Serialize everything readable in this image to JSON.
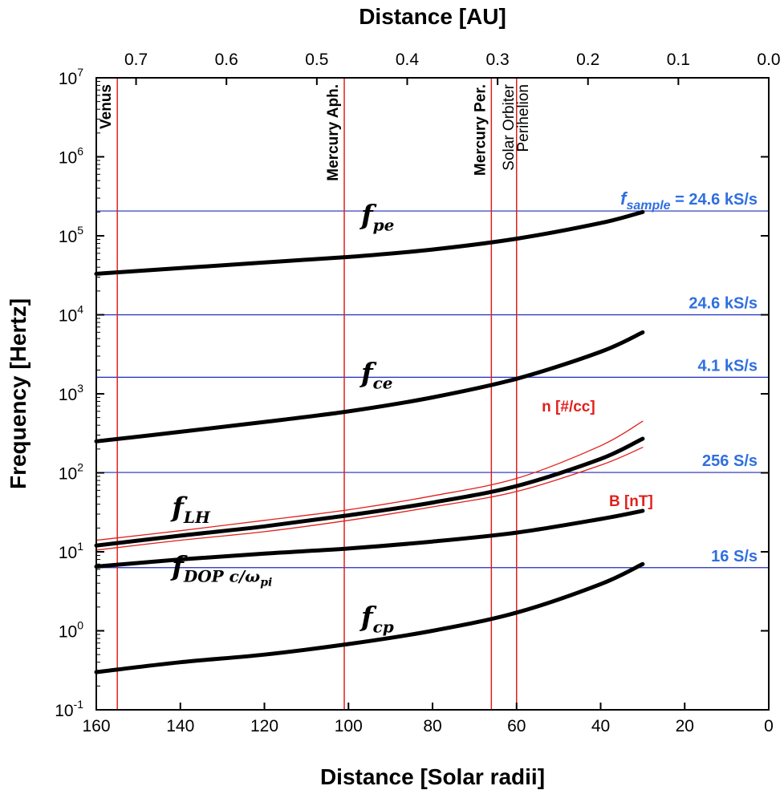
{
  "chart_data": {
    "type": "line",
    "xlabel": "Distance [Solar radii]",
    "x2label": "Distance [AU]",
    "ylabel": "Frequency [Hertz]",
    "xlim": [
      160,
      0
    ],
    "x2lim": [
      0.744,
      0.0
    ],
    "ylim": [
      0.1,
      10000000
    ],
    "yscale": "log",
    "x_ticks": [
      "160",
      "140",
      "120",
      "100",
      "80",
      "60",
      "40",
      "20",
      "0"
    ],
    "x_tick_values": [
      160,
      140,
      120,
      100,
      80,
      60,
      40,
      20,
      0
    ],
    "x2_ticks": [
      "0.7",
      "0.6",
      "0.5",
      "0.4",
      "0.3",
      "0.2",
      "0.1",
      "0.0"
    ],
    "x2_tick_values": [
      0.7,
      0.6,
      0.5,
      0.4,
      0.3,
      0.2,
      0.1,
      0.0
    ],
    "y_tick_exponents": [
      "-1",
      "0",
      "1",
      "2",
      "3",
      "4",
      "5",
      "6",
      "7"
    ],
    "y_tick_values": [
      0.1,
      1,
      10,
      100,
      1000,
      10000,
      100000,
      1000000,
      10000000
    ],
    "y_tick_base": "10",
    "series": [
      {
        "label": "f_pe",
        "color": "#000000",
        "x": [
          160,
          140,
          120,
          100,
          80,
          60,
          40,
          30
        ],
        "y": [
          33000,
          39000,
          46000,
          54000,
          67000,
          92000,
          145000,
          200000
        ]
      },
      {
        "label": "f_ce",
        "color": "#000000",
        "x": [
          160,
          140,
          120,
          100,
          80,
          60,
          40,
          30
        ],
        "y": [
          250,
          330,
          440,
          600,
          900,
          1550,
          3400,
          6000
        ]
      },
      {
        "label": "f_LH",
        "color": "#000000",
        "x": [
          160,
          140,
          120,
          100,
          80,
          60,
          40,
          30
        ],
        "y": [
          12,
          16,
          21,
          29,
          42,
          68,
          150,
          270
        ]
      },
      {
        "label": "n [#/cc]",
        "color": "#e0201b",
        "x": [
          160,
          140,
          120,
          100,
          80,
          60,
          40,
          30
        ],
        "y": [
          14,
          18.5,
          25,
          34,
          51,
          85,
          220,
          450
        ]
      },
      {
        "label": "B [nT]",
        "color": "#e0201b",
        "x": [
          160,
          140,
          120,
          100,
          80,
          60,
          40,
          30
        ],
        "y": [
          10.5,
          14,
          18,
          25,
          37,
          58,
          125,
          210
        ]
      },
      {
        "label": "f_DOP c/ω_pi",
        "color": "#000000",
        "x": [
          160,
          140,
          120,
          100,
          80,
          60,
          40,
          30
        ],
        "y": [
          6.5,
          8,
          9.5,
          11,
          13.5,
          17.5,
          26,
          33
        ]
      },
      {
        "label": "f_cp",
        "color": "#000000",
        "x": [
          160,
          140,
          120,
          100,
          80,
          60,
          40,
          30
        ],
        "y": [
          0.3,
          0.4,
          0.5,
          0.68,
          1.0,
          1.7,
          3.9,
          7.0
        ]
      }
    ],
    "curve_labels": [
      {
        "base": "f",
        "sub": "pe",
        "x": 97,
        "y": 140000
      },
      {
        "base": "f",
        "sub": "ce",
        "x": 97,
        "y": 1400
      },
      {
        "base": "f",
        "sub": "LH",
        "x": 142,
        "y": 28
      },
      {
        "base": "f",
        "sub": "DOP c/ω",
        "subsub": "pi",
        "x": 142,
        "y": 5
      },
      {
        "base": "f",
        "sub": "cp",
        "x": 97,
        "y": 1.15
      }
    ],
    "red_labels": [
      {
        "text": "n [#/cc]",
        "x": 54,
        "y": 600
      },
      {
        "text": "B [nT]",
        "x": 38,
        "y": 38
      }
    ],
    "hlines": [
      {
        "y": 206000,
        "label_prefix": "f",
        "label_sub": "sample",
        "label_suffix": " = 24.6 kS/s"
      },
      {
        "y": 10000,
        "label": "24.6 kS/s"
      },
      {
        "y": 1620,
        "label": "4.1 kS/s"
      },
      {
        "y": 101,
        "label": "256 S/s"
      },
      {
        "y": 6.3,
        "label": "16 S/s"
      }
    ],
    "vlines": [
      {
        "x": 155,
        "label": "Venus"
      },
      {
        "x": 101,
        "label": "Mercury Aph."
      },
      {
        "x": 66,
        "label": "Mercury Per."
      },
      {
        "x": 60,
        "label": "Solar Orbiter",
        "label2": "Perihelion"
      }
    ],
    "colors": {
      "curve": "#000000",
      "hline": "#1f2bb8",
      "vline": "#e0201b",
      "rate_label": "#2f6fe0",
      "red_label": "#e0201b"
    },
    "grid": false
  }
}
